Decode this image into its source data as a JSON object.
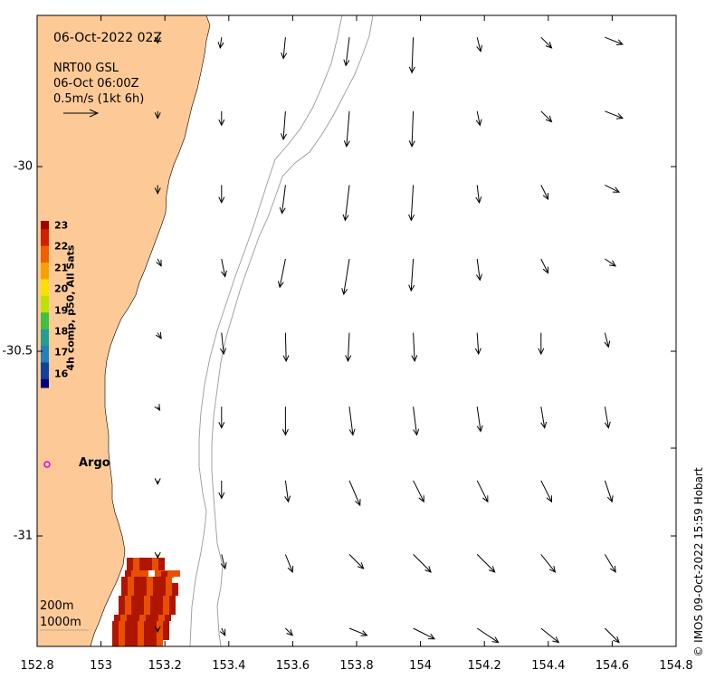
{
  "header": {
    "date_line": "06-Oct-2022 02Z",
    "product_line": "NRT00 GSL",
    "valid_line": "06-Oct 06:00Z",
    "scale_line": "0.5m/s (1kt 6h)"
  },
  "colorbar": {
    "title": "4h comp, p50, All Sats",
    "ticks": [
      "23",
      "22",
      "21",
      "20",
      "19",
      "18",
      "17",
      "16"
    ]
  },
  "argo": {
    "label": "Argo",
    "marker_color": "#e000e0"
  },
  "legend": {
    "isobath_1": "200m",
    "isobath_2": "1000m"
  },
  "credit": "© IMOS 09-Oct-2022 15:59 Hobart",
  "axes": {
    "x_ticks": [
      "152.8",
      "153",
      "153.2",
      "153.4",
      "153.6",
      "153.8",
      "154",
      "154.2",
      "154.4",
      "154.6",
      "154.8"
    ],
    "y_ticks": [
      "-30",
      "-30.5",
      "-31"
    ]
  },
  "colors": {
    "land": "#fdca97",
    "sst_hot": "#b01500",
    "sst_warm": "#e85000"
  },
  "chart_data": {
    "type": "map",
    "x_range": [
      152.8,
      154.8
    ],
    "y_range": [
      -31.3,
      -29.6
    ],
    "vectors": {
      "lon": [
        153.2,
        153.4,
        153.6,
        153.8,
        154.0,
        154.2,
        154.4,
        154.6
      ],
      "lat": [
        -29.65,
        -29.85,
        -30.05,
        -30.25,
        -30.45,
        -30.65,
        -30.85,
        -31.05,
        -31.25
      ],
      "u": [
        [
          0.0,
          -0.02,
          -0.03,
          -0.05,
          -0.02,
          0.05,
          0.15,
          0.25
        ],
        [
          0.0,
          0.0,
          -0.03,
          -0.04,
          -0.02,
          0.04,
          0.15,
          0.25
        ],
        [
          0.0,
          0.0,
          -0.05,
          -0.06,
          -0.03,
          0.03,
          0.1,
          0.2
        ],
        [
          0.05,
          0.05,
          -0.08,
          -0.08,
          -0.03,
          0.04,
          0.1,
          0.15
        ],
        [
          0.05,
          0.03,
          0.01,
          -0.02,
          0.02,
          0.02,
          0.0,
          0.05
        ],
        [
          0.03,
          0.0,
          0.0,
          0.05,
          0.05,
          0.05,
          0.05,
          0.05
        ],
        [
          0.0,
          0.0,
          0.04,
          0.15,
          0.15,
          0.15,
          0.15,
          0.1
        ],
        [
          0.0,
          0.05,
          0.1,
          0.2,
          0.25,
          0.25,
          0.2,
          0.15
        ],
        [
          0.0,
          0.05,
          0.1,
          0.25,
          0.3,
          0.3,
          0.25,
          0.2
        ]
      ],
      "v": [
        [
          -0.08,
          -0.15,
          -0.3,
          -0.4,
          -0.5,
          -0.2,
          -0.15,
          -0.1
        ],
        [
          -0.1,
          -0.2,
          -0.4,
          -0.5,
          -0.5,
          -0.2,
          -0.15,
          -0.1
        ],
        [
          -0.12,
          -0.25,
          -0.4,
          -0.5,
          -0.5,
          -0.25,
          -0.2,
          -0.1
        ],
        [
          -0.1,
          -0.25,
          -0.4,
          -0.5,
          -0.45,
          -0.3,
          -0.2,
          -0.1
        ],
        [
          -0.08,
          -0.3,
          -0.4,
          -0.4,
          -0.4,
          -0.3,
          -0.3,
          -0.2
        ],
        [
          -0.05,
          -0.3,
          -0.4,
          -0.4,
          -0.4,
          -0.35,
          -0.3,
          -0.3
        ],
        [
          -0.05,
          -0.25,
          -0.3,
          -0.35,
          -0.3,
          -0.3,
          -0.3,
          -0.3
        ],
        [
          -0.05,
          -0.2,
          -0.25,
          -0.2,
          -0.25,
          -0.25,
          -0.25,
          -0.25
        ],
        [
          -0.05,
          -0.1,
          -0.1,
          -0.1,
          -0.15,
          -0.2,
          -0.2,
          -0.2
        ]
      ]
    }
  }
}
